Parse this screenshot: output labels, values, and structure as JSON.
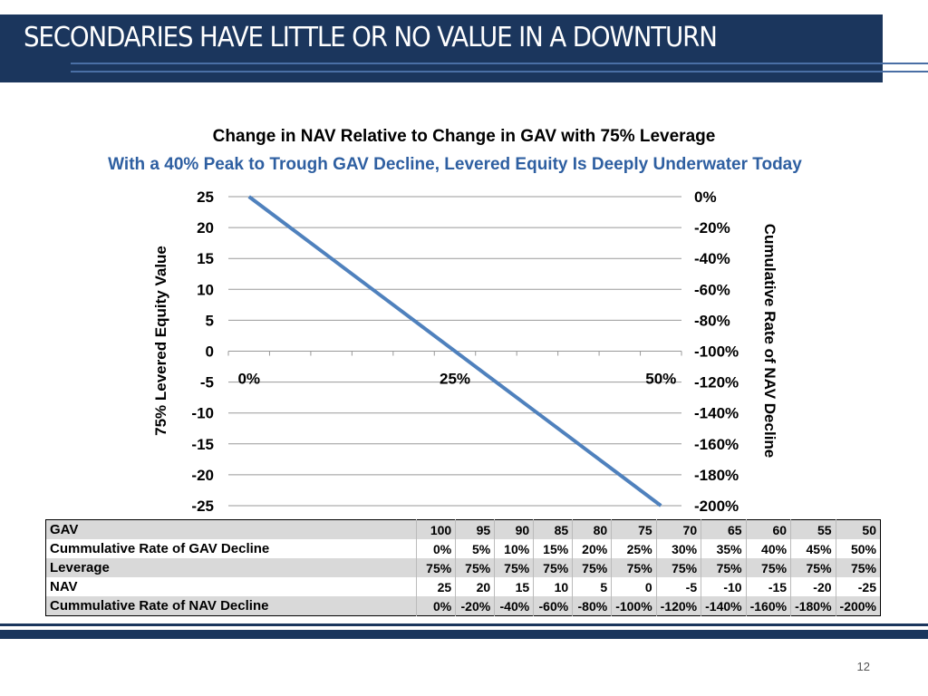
{
  "slide": {
    "title": "SECONDARIES HAVE LITTLE OR NO VALUE IN A DOWNTURN",
    "page_number": "12",
    "colors": {
      "header": "#1b365d",
      "line": "#4f81bd",
      "subtitle": "#2e5fa1"
    }
  },
  "chart_data": {
    "type": "line",
    "title": "Change in NAV Relative to Change in GAV with 75% Leverage",
    "subtitle": "With a 40% Peak to Trough GAV Decline, Levered Equity Is Deeply Underwater Today",
    "ylabel": "75% Levered Equity Value",
    "y2label": "Cumulative Rate of NAV Decline",
    "categories": [
      "0%",
      "5%",
      "10%",
      "15%",
      "20%",
      "25%",
      "30%",
      "35%",
      "40%",
      "45%",
      "50%"
    ],
    "x_tick_labels": [
      "0%",
      "25%",
      "50%"
    ],
    "series": [
      {
        "values": [
          25,
          20,
          15,
          10,
          5,
          0,
          -5,
          -10,
          -15,
          -20,
          -25
        ]
      }
    ],
    "ylim": [
      -25,
      25
    ],
    "y_ticks": [
      "25",
      "20",
      "15",
      "10",
      "5",
      "0",
      "-5",
      "-10",
      "-15",
      "-20",
      "-25"
    ],
    "y2_ticks": [
      "0%",
      "-20%",
      "-40%",
      "-60%",
      "-80%",
      "-100%",
      "-120%",
      "-140%",
      "-160%",
      "-180%",
      "-200%"
    ],
    "grid": true
  },
  "table": {
    "rows": [
      [
        "GAV",
        "100",
        "95",
        "90",
        "85",
        "80",
        "75",
        "70",
        "65",
        "60",
        "55",
        "50"
      ],
      [
        "Cummulative Rate of GAV Decline",
        "0%",
        "5%",
        "10%",
        "15%",
        "20%",
        "25%",
        "30%",
        "35%",
        "40%",
        "45%",
        "50%"
      ],
      [
        "Leverage",
        "75%",
        "75%",
        "75%",
        "75%",
        "75%",
        "75%",
        "75%",
        "75%",
        "75%",
        "75%",
        "75%"
      ],
      [
        "NAV",
        "25",
        "20",
        "15",
        "10",
        "5",
        "0",
        "-5",
        "-10",
        "-15",
        "-20",
        "-25"
      ],
      [
        "Cummulative Rate of NAV Decline",
        "0%",
        "-20%",
        "-40%",
        "-60%",
        "-80%",
        "-100%",
        "-120%",
        "-140%",
        "-160%",
        "-180%",
        "-200%"
      ]
    ]
  }
}
